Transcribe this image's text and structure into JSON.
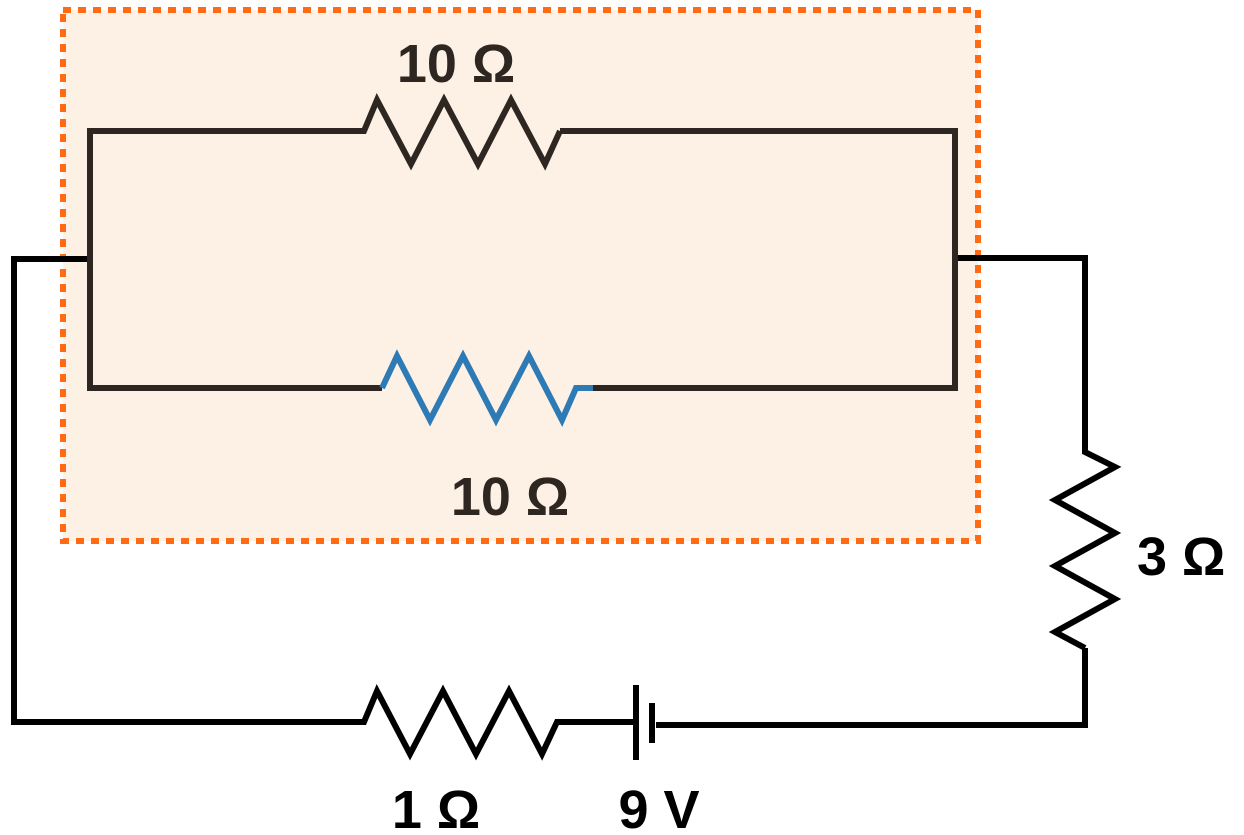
{
  "colors": {
    "wire": "#000000",
    "inner_wire": "#2e2620",
    "highlight_resistor": "#2e7ab5",
    "box_border": "#ff6a13",
    "box_fill": "#fdf1e6"
  },
  "parallel_group": {
    "top_resistor": {
      "label": "10 Ω",
      "resistance_ohm": 10
    },
    "bottom_resistor": {
      "label": "10 Ω",
      "resistance_ohm": 10
    }
  },
  "series_resistor_right": {
    "label": "3 Ω",
    "resistance_ohm": 3
  },
  "series_resistor_bottom": {
    "label": "1 Ω",
    "resistance_ohm": 1
  },
  "battery": {
    "label": "9 V",
    "voltage_v": 9
  }
}
